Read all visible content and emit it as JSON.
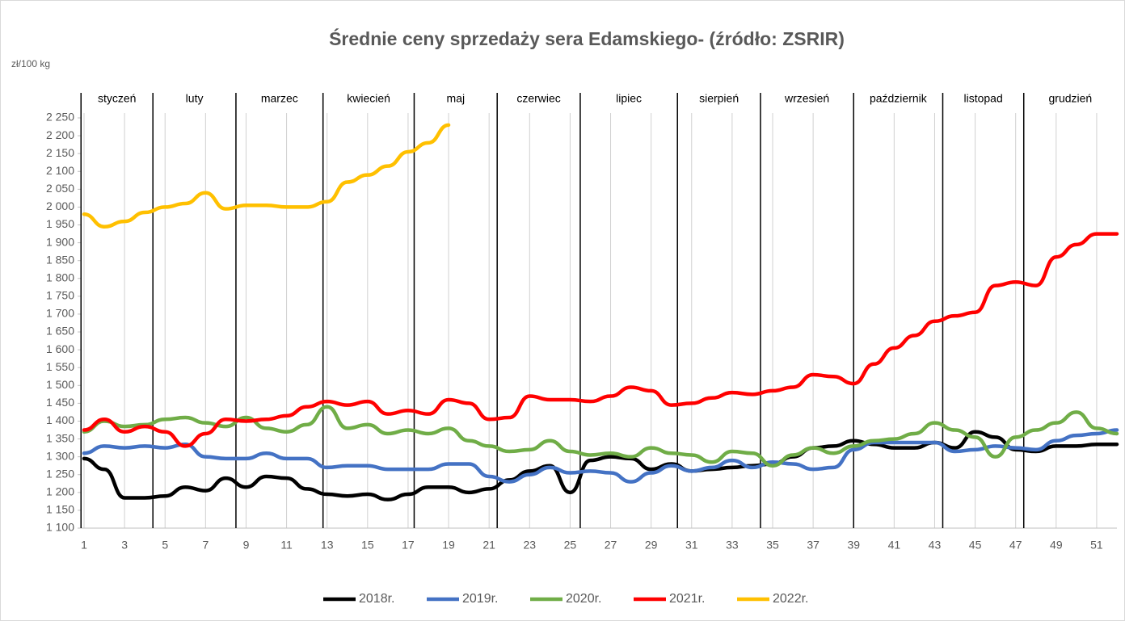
{
  "chart_data": {
    "type": "line",
    "title": "Średnie ceny sprzedaży sera Edamskiego- (źródło: ZSRIR)",
    "y_label": "zł/100 kg",
    "x": [
      1,
      2,
      3,
      4,
      5,
      6,
      7,
      8,
      9,
      10,
      11,
      12,
      13,
      14,
      15,
      16,
      17,
      18,
      19,
      20,
      21,
      22,
      23,
      24,
      25,
      26,
      27,
      28,
      29,
      30,
      31,
      32,
      33,
      34,
      35,
      36,
      37,
      38,
      39,
      40,
      41,
      42,
      43,
      44,
      45,
      46,
      47,
      48,
      49,
      50,
      51,
      52
    ],
    "xlim": [
      1,
      52
    ],
    "xticks": [
      1,
      3,
      5,
      7,
      9,
      11,
      13,
      15,
      17,
      19,
      21,
      23,
      25,
      27,
      29,
      31,
      33,
      35,
      37,
      39,
      41,
      43,
      45,
      47,
      49,
      51
    ],
    "ylim": [
      1100,
      2250
    ],
    "yticks": [
      {
        "value": 1100,
        "label": "1 100"
      },
      {
        "value": 1150,
        "label": "1 150"
      },
      {
        "value": 1200,
        "label": "1 200"
      },
      {
        "value": 1250,
        "label": "1 250"
      },
      {
        "value": 1300,
        "label": "1 300"
      },
      {
        "value": 1350,
        "label": "1 350"
      },
      {
        "value": 1400,
        "label": "1 400"
      },
      {
        "value": 1450,
        "label": "1 450"
      },
      {
        "value": 1500,
        "label": "1 500"
      },
      {
        "value": 1550,
        "label": "1 550"
      },
      {
        "value": 1600,
        "label": "1 600"
      },
      {
        "value": 1650,
        "label": "1 650"
      },
      {
        "value": 1700,
        "label": "1 700"
      },
      {
        "value": 1750,
        "label": "1 750"
      },
      {
        "value": 1800,
        "label": "1 800"
      },
      {
        "value": 1850,
        "label": "1 850"
      },
      {
        "value": 1900,
        "label": "1 900"
      },
      {
        "value": 1950,
        "label": "1 950"
      },
      {
        "value": 2000,
        "label": "2 000"
      },
      {
        "value": 2050,
        "label": "2 050"
      },
      {
        "value": 2100,
        "label": "2 100"
      },
      {
        "value": 2150,
        "label": "2 150"
      },
      {
        "value": 2200,
        "label": "2 200"
      },
      {
        "value": 2250,
        "label": "2 250"
      }
    ],
    "grid": true,
    "legend": "bottom",
    "months": [
      {
        "label": "styczeń",
        "start": 0.85
      },
      {
        "label": "luty",
        "start": 4.4
      },
      {
        "label": "marzec",
        "start": 8.5
      },
      {
        "label": "kwiecień",
        "start": 12.8
      },
      {
        "label": "maj",
        "start": 17.3
      },
      {
        "label": "czerwiec",
        "start": 21.4
      },
      {
        "label": "lipiec",
        "start": 25.5
      },
      {
        "label": "sierpień",
        "start": 30.3
      },
      {
        "label": "wrzesień",
        "start": 34.4
      },
      {
        "label": "październik",
        "start": 39.0
      },
      {
        "label": "listopad",
        "start": 43.4
      },
      {
        "label": "grudzień",
        "start": 47.4
      }
    ],
    "series": [
      {
        "name": "2018r.",
        "color": "#000000",
        "values": [
          1295,
          1265,
          1185,
          1185,
          1190,
          1215,
          1205,
          1240,
          1215,
          1245,
          1240,
          1210,
          1195,
          1190,
          1195,
          1180,
          1195,
          1215,
          1215,
          1200,
          1210,
          1235,
          1260,
          1275,
          1200,
          1290,
          1300,
          1295,
          1265,
          1280,
          1260,
          1265,
          1270,
          1275,
          1280,
          1300,
          1325,
          1330,
          1345,
          1335,
          1325,
          1325,
          1340,
          1325,
          1370,
          1355,
          1320,
          1315,
          1330,
          1330,
          1335,
          1335
        ]
      },
      {
        "name": "2019r.",
        "color": "#4472c4",
        "values": [
          1310,
          1330,
          1325,
          1330,
          1325,
          1335,
          1300,
          1295,
          1295,
          1310,
          1295,
          1295,
          1270,
          1275,
          1275,
          1265,
          1265,
          1265,
          1280,
          1280,
          1245,
          1230,
          1250,
          1270,
          1255,
          1260,
          1255,
          1230,
          1255,
          1275,
          1260,
          1270,
          1290,
          1270,
          1285,
          1280,
          1265,
          1270,
          1320,
          1340,
          1340,
          1340,
          1340,
          1315,
          1320,
          1330,
          1325,
          1320,
          1345,
          1360,
          1365,
          1375
        ]
      },
      {
        "name": "2020r.",
        "color": "#70ad47",
        "values": [
          1370,
          1400,
          1385,
          1390,
          1405,
          1410,
          1395,
          1385,
          1410,
          1380,
          1370,
          1390,
          1440,
          1380,
          1390,
          1365,
          1375,
          1365,
          1380,
          1345,
          1330,
          1315,
          1320,
          1345,
          1315,
          1305,
          1310,
          1300,
          1325,
          1310,
          1305,
          1285,
          1315,
          1310,
          1275,
          1305,
          1325,
          1310,
          1330,
          1345,
          1350,
          1365,
          1395,
          1375,
          1355,
          1300,
          1355,
          1375,
          1395,
          1425,
          1380,
          1365
        ]
      },
      {
        "name": "2021r.",
        "color": "#ff0000",
        "values": [
          1375,
          1405,
          1370,
          1385,
          1370,
          1330,
          1365,
          1405,
          1400,
          1405,
          1415,
          1440,
          1455,
          1445,
          1455,
          1420,
          1430,
          1420,
          1460,
          1450,
          1405,
          1410,
          1470,
          1460,
          1460,
          1455,
          1470,
          1495,
          1485,
          1445,
          1450,
          1465,
          1480,
          1475,
          1485,
          1495,
          1530,
          1525,
          1505,
          1560,
          1605,
          1640,
          1680,
          1695,
          1705,
          1780,
          1790,
          1780,
          1860,
          1895,
          1925,
          1925
        ]
      },
      {
        "name": "2022r.",
        "color": "#ffc000",
        "values": [
          1980,
          1945,
          1960,
          1985,
          2000,
          2010,
          2040,
          1995,
          2005,
          2005,
          2000,
          2000,
          2015,
          2070,
          2090,
          2115,
          2155,
          2180,
          2230,
          null,
          null,
          null,
          null,
          null,
          null,
          null,
          null,
          null,
          null,
          null,
          null,
          null,
          null,
          null,
          null,
          null,
          null,
          null,
          null,
          null,
          null,
          null,
          null,
          null,
          null,
          null,
          null,
          null,
          null,
          null,
          null,
          null
        ]
      }
    ]
  }
}
